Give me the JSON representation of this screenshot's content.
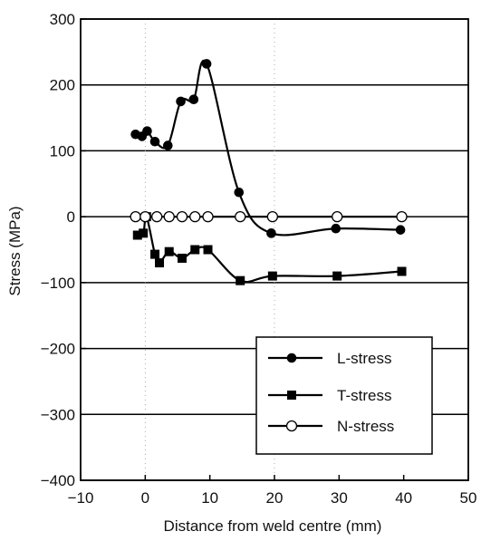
{
  "chart_data": {
    "type": "line",
    "title": "",
    "xlabel": "Distance from weld centre (mm)",
    "ylabel": "Stress (MPa)",
    "xlim": [
      -10,
      50
    ],
    "ylim": [
      -400,
      300
    ],
    "xticks": [
      -10,
      0,
      10,
      20,
      30,
      40,
      50
    ],
    "yticks": [
      -400,
      -300,
      -200,
      -100,
      0,
      100,
      200,
      300
    ],
    "xtick_labels": [
      "−10",
      "0",
      "10",
      "20",
      "30",
      "40",
      "50"
    ],
    "ytick_labels": [
      "−400",
      "−300",
      "−200",
      "−100",
      "0",
      "100",
      "200",
      "300"
    ],
    "grid": "horizontal-major",
    "legend_position": "lower-right",
    "series": [
      {
        "name": "L-stress",
        "marker": "filled-circle",
        "points": [
          [
            -1.5,
            125
          ],
          [
            -0.5,
            122
          ],
          [
            0.3,
            130
          ],
          [
            1.5,
            114
          ],
          [
            3.5,
            108
          ],
          [
            5.5,
            175
          ],
          [
            7.5,
            178
          ],
          [
            9.5,
            232
          ],
          [
            14.5,
            37
          ],
          [
            19.5,
            -25
          ],
          [
            29.5,
            -18
          ],
          [
            39.5,
            -20
          ]
        ]
      },
      {
        "name": "T-stress",
        "marker": "filled-square",
        "points": [
          [
            -1.2,
            -28
          ],
          [
            -0.3,
            -25
          ],
          [
            0.2,
            0
          ],
          [
            1.5,
            -57
          ],
          [
            2.2,
            -70
          ],
          [
            3.7,
            -53
          ],
          [
            5.7,
            -63
          ],
          [
            7.7,
            -50
          ],
          [
            9.7,
            -50
          ],
          [
            14.7,
            -97
          ],
          [
            19.7,
            -90
          ],
          [
            29.7,
            -90
          ],
          [
            39.7,
            -83
          ]
        ]
      },
      {
        "name": "N-stress",
        "marker": "open-circle",
        "points": [
          [
            -1.5,
            0
          ],
          [
            0,
            0
          ],
          [
            1.8,
            0
          ],
          [
            3.7,
            0
          ],
          [
            5.7,
            0
          ],
          [
            7.7,
            0
          ],
          [
            9.7,
            0
          ],
          [
            14.7,
            0
          ],
          [
            19.7,
            0
          ],
          [
            29.7,
            0
          ],
          [
            39.7,
            0
          ]
        ]
      }
    ]
  }
}
